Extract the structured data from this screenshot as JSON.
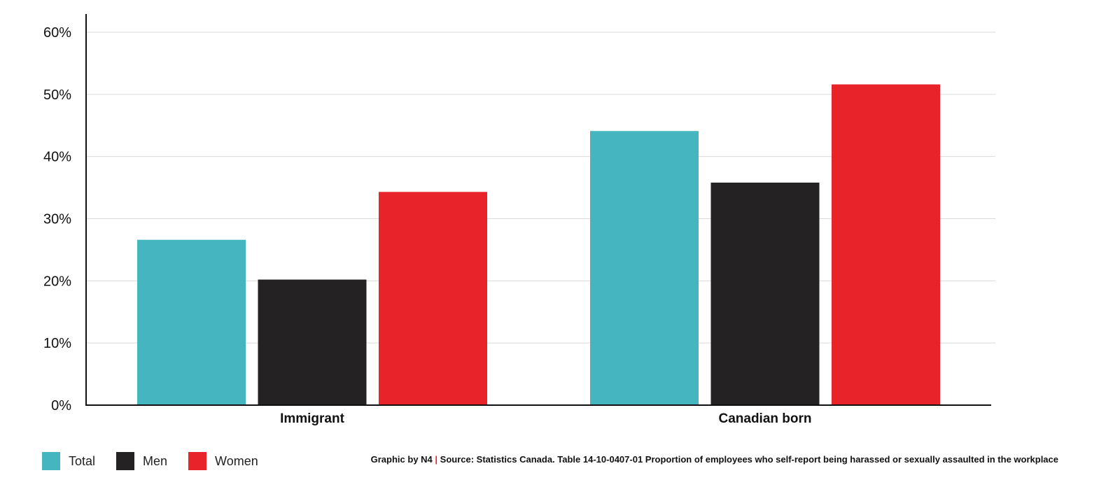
{
  "chart_data": {
    "type": "bar",
    "categories": [
      "Immigrant",
      "Canadian born"
    ],
    "series": [
      {
        "name": "Total",
        "values": [
          26.6,
          44.1
        ],
        "color": "#45b6bf"
      },
      {
        "name": "Men",
        "values": [
          20.2,
          35.8
        ],
        "color": "#252223"
      },
      {
        "name": "Women",
        "values": [
          34.3,
          51.6
        ],
        "color": "#e8232a"
      }
    ],
    "ylim": [
      0,
      60
    ],
    "yticks": [
      0,
      10,
      20,
      30,
      40,
      50,
      60
    ],
    "ytick_labels": [
      "0%",
      "10%",
      "20%",
      "30%",
      "40%",
      "50%",
      "60%"
    ],
    "grid": true,
    "legend_position": "bottom-left"
  },
  "footer": {
    "credit": "Graphic by N4",
    "separator": "|",
    "source": "Source: Statistics Canada. Table 14-10-0407-01  Proportion of employees who self-report being harassed or sexually assaulted in the workplace"
  }
}
